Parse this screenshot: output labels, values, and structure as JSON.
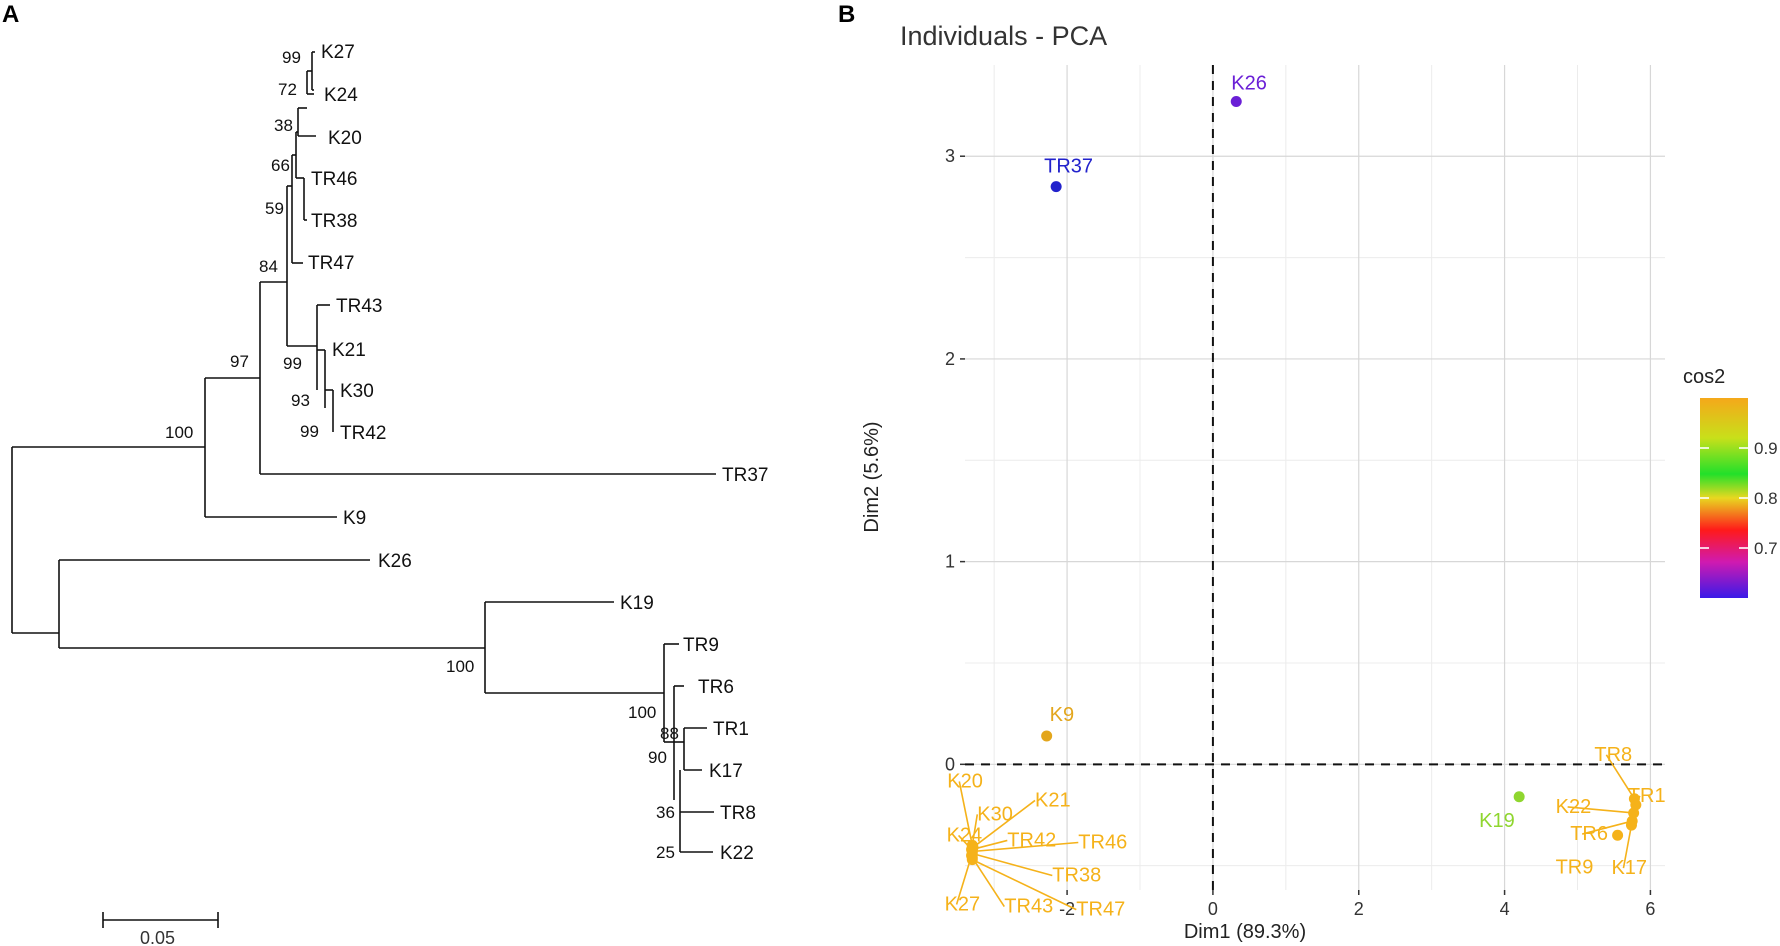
{
  "panels": {
    "a_letter": "A",
    "b_letter": "B"
  },
  "tree": {
    "scale_bar_label": "0.05",
    "leaves": [
      "K27",
      "K24",
      "K20",
      "TR46",
      "TR38",
      "TR47",
      "TR43",
      "K21",
      "K30",
      "TR42",
      "TR37",
      "K9",
      "K26",
      "K19",
      "TR9",
      "TR6",
      "TR1",
      "K17",
      "TR8",
      "K22"
    ],
    "bootstrap": [
      "99",
      "72",
      "38",
      "66",
      "59",
      "84",
      "99",
      "93",
      "99",
      "97",
      "100",
      "100",
      "100",
      "88",
      "90",
      "36",
      "25"
    ]
  },
  "chart_data": {
    "type": "scatter",
    "title": "Individuals - PCA",
    "xlabel": "Dim1 (89.3%)",
    "ylabel": "Dim2 (5.6%)",
    "xlim": [
      -3.4,
      6.2
    ],
    "ylim": [
      -0.62,
      3.45
    ],
    "xticks": [
      -2,
      0,
      2,
      4,
      6
    ],
    "yticks": [
      0,
      1,
      2,
      3
    ],
    "xtick_labels": [
      "-2",
      "0",
      "2",
      "4",
      "6"
    ],
    "ytick_labels": [
      "0",
      "1",
      "2",
      "3"
    ],
    "points": [
      {
        "label": "K26",
        "x": 0.32,
        "y": 3.27,
        "cos2": 0.62,
        "color": "#6a1fd6"
      },
      {
        "label": "TR37",
        "x": -2.15,
        "y": 2.85,
        "cos2": 0.6,
        "color": "#2222cc"
      },
      {
        "label": "K9",
        "x": -2.28,
        "y": 0.14,
        "cos2": 0.97,
        "color": "#e3a61c"
      },
      {
        "label": "K19",
        "x": 4.2,
        "y": -0.16,
        "cos2": 0.88,
        "color": "#8fd62f"
      },
      {
        "label": "K20",
        "x": -3.3,
        "y": -0.4,
        "cos2": 0.99,
        "color": "#f5b21a"
      },
      {
        "label": "K30",
        "x": -3.3,
        "y": -0.4,
        "cos2": 0.99,
        "color": "#f5b21a"
      },
      {
        "label": "K21",
        "x": -3.29,
        "y": -0.41,
        "cos2": 0.99,
        "color": "#f5b21a"
      },
      {
        "label": "K24",
        "x": -3.31,
        "y": -0.42,
        "cos2": 0.99,
        "color": "#f5b21a"
      },
      {
        "label": "TR42",
        "x": -3.3,
        "y": -0.42,
        "cos2": 0.99,
        "color": "#f5b21a"
      },
      {
        "label": "TR46",
        "x": -3.3,
        "y": -0.43,
        "cos2": 0.99,
        "color": "#f5b21a"
      },
      {
        "label": "TR38",
        "x": -3.3,
        "y": -0.44,
        "cos2": 0.99,
        "color": "#f5b21a"
      },
      {
        "label": "K27",
        "x": -3.31,
        "y": -0.45,
        "cos2": 0.99,
        "color": "#f5b21a"
      },
      {
        "label": "TR43",
        "x": -3.3,
        "y": -0.46,
        "cos2": 0.99,
        "color": "#f5b21a"
      },
      {
        "label": "TR47",
        "x": -3.3,
        "y": -0.47,
        "cos2": 0.99,
        "color": "#f5b21a"
      },
      {
        "label": "TR8",
        "x": 5.78,
        "y": -0.17,
        "cos2": 0.99,
        "color": "#f5b21a"
      },
      {
        "label": "TR1",
        "x": 5.8,
        "y": -0.2,
        "cos2": 0.99,
        "color": "#f5b21a"
      },
      {
        "label": "K22",
        "x": 5.77,
        "y": -0.24,
        "cos2": 0.99,
        "color": "#f5b21a"
      },
      {
        "label": "TR6",
        "x": 5.75,
        "y": -0.28,
        "cos2": 0.99,
        "color": "#f5b21a"
      },
      {
        "label": "K17",
        "x": 5.74,
        "y": -0.3,
        "cos2": 0.99,
        "color": "#f5b21a"
      },
      {
        "label": "TR9",
        "x": 5.55,
        "y": -0.35,
        "cos2": 0.99,
        "color": "#f5b21a"
      }
    ],
    "legend": {
      "title": "cos2",
      "ticks": [
        0.9,
        0.8,
        0.7
      ],
      "tick_labels": [
        "0.9",
        "0.8",
        "0.7"
      ],
      "range": [
        0.6,
        1.0
      ],
      "colors": [
        "#f5b21a",
        "#a8e01a",
        "#2ee02a",
        "#e8e020",
        "#ff1a1a",
        "#e01aa0",
        "#5a1ae0",
        "#2a1ae8"
      ]
    }
  }
}
